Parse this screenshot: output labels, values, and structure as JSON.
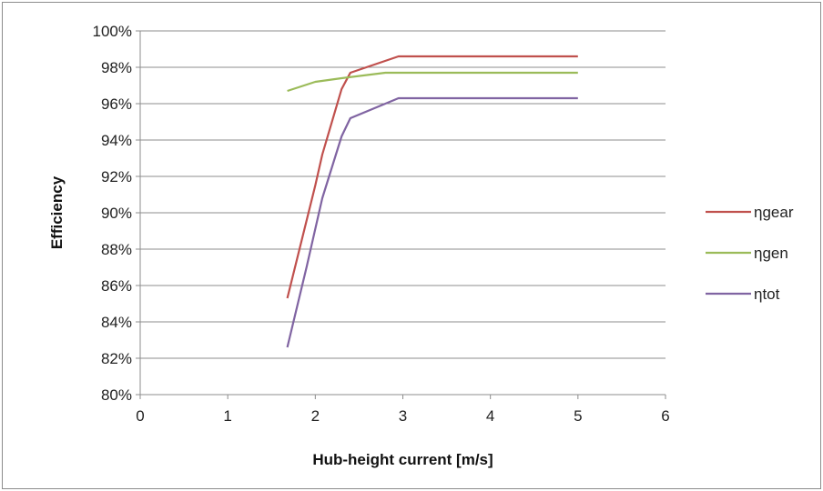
{
  "chart_data": {
    "type": "line",
    "title": "",
    "xlabel": "Hub-height current [m/s]",
    "ylabel": "Efficiency",
    "xlim": [
      0,
      6
    ],
    "ylim": [
      80,
      100
    ],
    "x_ticks": [
      0,
      1,
      2,
      3,
      4,
      5,
      6
    ],
    "y_ticks": [
      80,
      82,
      84,
      86,
      88,
      90,
      92,
      94,
      96,
      98,
      100
    ],
    "y_tick_labels": [
      "80%",
      "82%",
      "84%",
      "86%",
      "88%",
      "90%",
      "92%",
      "94%",
      "96%",
      "98%",
      "100%"
    ],
    "grid": "horizontal",
    "legend_position": "right",
    "series": [
      {
        "name": "ηgear",
        "color": "#c0504d",
        "points": [
          [
            1.68,
            85.3
          ],
          [
            2.0,
            91.5
          ],
          [
            2.08,
            93.2
          ],
          [
            2.3,
            96.8
          ],
          [
            2.4,
            97.7
          ],
          [
            2.95,
            98.6
          ],
          [
            5.0,
            98.6
          ]
        ]
      },
      {
        "name": "ηgen",
        "color": "#9bbb59",
        "points": [
          [
            1.68,
            96.7
          ],
          [
            2.0,
            97.2
          ],
          [
            2.3,
            97.4
          ],
          [
            2.8,
            97.7
          ],
          [
            5.0,
            97.7
          ]
        ]
      },
      {
        "name": "ηtot",
        "color": "#8064a2",
        "points": [
          [
            1.68,
            82.6
          ],
          [
            1.9,
            87.0
          ],
          [
            2.08,
            90.8
          ],
          [
            2.3,
            94.2
          ],
          [
            2.4,
            95.2
          ],
          [
            2.8,
            96.0
          ],
          [
            2.95,
            96.3
          ],
          [
            5.0,
            96.3
          ]
        ]
      }
    ]
  }
}
